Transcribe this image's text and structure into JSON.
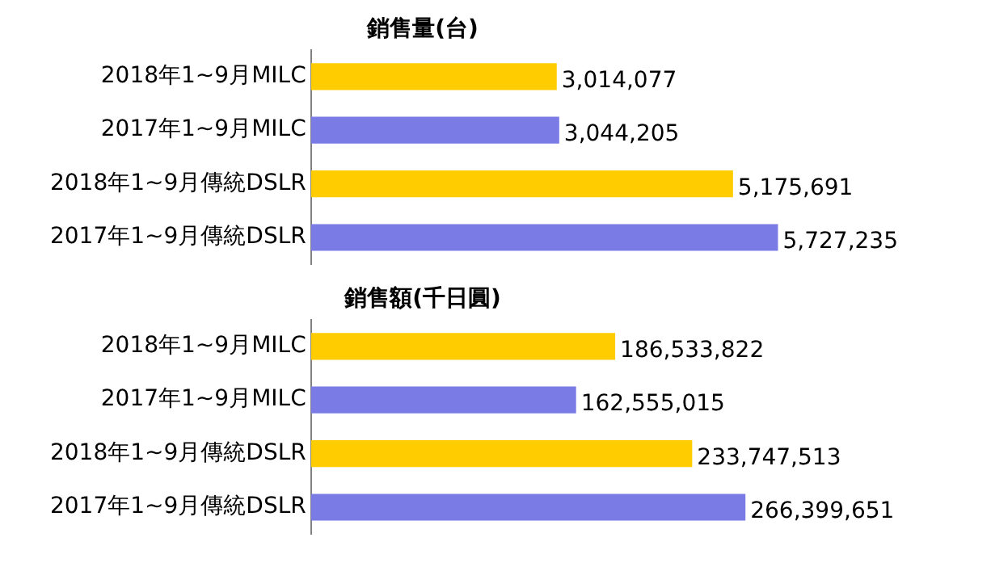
{
  "chart_data": [
    {
      "type": "bar",
      "orientation": "horizontal",
      "title": "銷售量(台)",
      "categories": [
        "2018年1~9月MILC",
        "2017年1~9月MILC",
        "2018年1~9月傳統DSLR",
        "2017年1~9月傳統DSLR"
      ],
      "values": [
        3014077,
        3044205,
        5175691,
        5727235
      ],
      "value_labels": [
        "3,014,077",
        "3,044,205",
        "5,175,691",
        "5,727,235"
      ],
      "colors": [
        "#ffcc00",
        "#7b7be6",
        "#ffcc00",
        "#7b7be6"
      ],
      "tick_labels": "y",
      "legend": false
    },
    {
      "type": "bar",
      "orientation": "horizontal",
      "title": "銷售額(千日圓)",
      "categories": [
        "2018年1~9月MILC",
        "2017年1~9月MILC",
        "2018年1~9月傳統DSLR",
        "2017年1~9月傳統DSLR"
      ],
      "values": [
        186533822,
        162555015,
        233747513,
        266399651
      ],
      "value_labels": [
        "186,533,822",
        "162,555,015",
        "233,747,513",
        "266,399,651"
      ],
      "colors": [
        "#ffcc00",
        "#7b7be6",
        "#ffcc00",
        "#7b7be6"
      ],
      "tick_labels": "y",
      "legend": false
    }
  ]
}
